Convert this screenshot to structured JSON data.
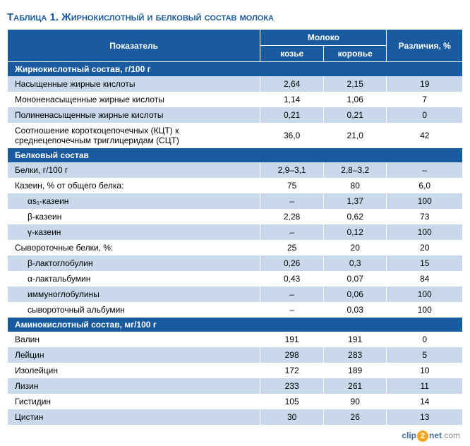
{
  "title": "Таблица 1. Жирнокислотный и белковый состав молока",
  "headers": {
    "param": "Показатель",
    "milk": "Молоко",
    "goat": "козье",
    "cow": "коровье",
    "diff": "Различия, %"
  },
  "sections": [
    {
      "title": "Жирнокислотный состав, г/100 г",
      "rows": [
        {
          "label": "Насыщенные жирные кислоты",
          "goat": "2,64",
          "cow": "2,15",
          "diff": "19",
          "indent": 0,
          "shade": "blue"
        },
        {
          "label": "Мононенасыщенные жирные кислоты",
          "goat": "1,14",
          "cow": "1,06",
          "diff": "7",
          "indent": 0,
          "shade": "white"
        },
        {
          "label": "Полиненасыщенные жирные кислоты",
          "goat": "0,21",
          "cow": "0,21",
          "diff": "0",
          "indent": 0,
          "shade": "blue"
        },
        {
          "label": "Соотношение короткоцепочечных (КЦТ) к среднецепочечным триглицеридам (СЦТ)",
          "goat": "36,0",
          "cow": "21,0",
          "diff": "42",
          "indent": 0,
          "shade": "white"
        }
      ]
    },
    {
      "title": "Белковый состав",
      "rows": [
        {
          "label": "Белки, г/100 г",
          "goat": "2,9–3,1",
          "cow": "2,8–3,2",
          "diff": "–",
          "indent": 0,
          "shade": "blue"
        },
        {
          "label": "Казеин, % от общего белка:",
          "goat": "75",
          "cow": "80",
          "diff": "6,0",
          "indent": 0,
          "shade": "white"
        },
        {
          "label": "αs₁-казеин",
          "goat": "–",
          "cow": "1,37",
          "diff": "100",
          "indent": 1,
          "shade": "blue"
        },
        {
          "label": "β-казеин",
          "goat": "2,28",
          "cow": "0,62",
          "diff": "73",
          "indent": 1,
          "shade": "white"
        },
        {
          "label": "γ-казеин",
          "goat": "–",
          "cow": "0,12",
          "diff": "100",
          "indent": 1,
          "shade": "blue"
        },
        {
          "label": "Сывороточные белки, %:",
          "goat": "25",
          "cow": "20",
          "diff": "20",
          "indent": 0,
          "shade": "white"
        },
        {
          "label": "β-лактоглобулин",
          "goat": "0,26",
          "cow": "0,3",
          "diff": "15",
          "indent": 1,
          "shade": "blue"
        },
        {
          "label": "α-лактальбумин",
          "goat": "0,43",
          "cow": "0,07",
          "diff": "84",
          "indent": 1,
          "shade": "white"
        },
        {
          "label": "иммуноглобулины",
          "goat": "–",
          "cow": "0,06",
          "diff": "100",
          "indent": 1,
          "shade": "blue"
        },
        {
          "label": "сывороточный альбумин",
          "goat": "–",
          "cow": "0,03",
          "diff": "100",
          "indent": 1,
          "shade": "white"
        }
      ]
    },
    {
      "title": "Аминокислотный состав, мг/100 г",
      "rows": [
        {
          "label": "Валин",
          "goat": "191",
          "cow": "191",
          "diff": "0",
          "indent": 0,
          "shade": "white"
        },
        {
          "label": "Лейцин",
          "goat": "298",
          "cow": "283",
          "diff": "5",
          "indent": 0,
          "shade": "blue"
        },
        {
          "label": "Изолейцин",
          "goat": "172",
          "cow": "189",
          "diff": "10",
          "indent": 0,
          "shade": "white"
        },
        {
          "label": "Лизин",
          "goat": "233",
          "cow": "261",
          "diff": "11",
          "indent": 0,
          "shade": "blue"
        },
        {
          "label": "Гистидин",
          "goat": "105",
          "cow": "90",
          "diff": "14",
          "indent": 0,
          "shade": "white"
        },
        {
          "label": "Цистин",
          "goat": "30",
          "cow": "26",
          "diff": "13",
          "indent": 0,
          "shade": "blue"
        }
      ]
    }
  ],
  "brand": {
    "pre": "clip",
    "num": "2",
    "post": "net",
    "tld": ".com"
  },
  "style": {
    "header_bg": "#1a5a9e",
    "row_alt_bg": "#c9d9eb",
    "row_bg": "#ffffff",
    "title_color": "#1a5a9e",
    "font_size_body": 12,
    "font_size_title": 15,
    "col_widths_pct": [
      50,
      12.5,
      12.5,
      15
    ]
  }
}
